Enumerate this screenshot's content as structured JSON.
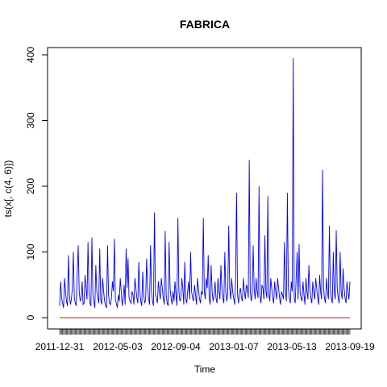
{
  "chart_data": {
    "type": "line",
    "title": "FABRICA",
    "xlabel": "Time",
    "ylabel": "ts(x[, c(4, 6)])",
    "ylim": [
      0,
      400
    ],
    "y_ticks": [
      0,
      100,
      200,
      300,
      400
    ],
    "x_tick_labels": [
      "2011-12-31",
      "2012-05-03",
      "2012-09-04",
      "2013-01-07",
      "2013-05-13",
      "2013-09-19"
    ],
    "x_tick_label_color": "#000000",
    "colors": {
      "series1": "#0000ff",
      "series2": "#ff0000",
      "frame": "#000000"
    },
    "series": [
      {
        "values": [
          18,
          55,
          30,
          22,
          15,
          60,
          40,
          25,
          18,
          95,
          35,
          20,
          28,
          45,
          100,
          30,
          22,
          18,
          70,
          110,
          40,
          25,
          30,
          55,
          20,
          22,
          65,
          45,
          28,
          115,
          40,
          22,
          18,
          122,
          35,
          25,
          15,
          80,
          40,
          30,
          22,
          105,
          28,
          20,
          60,
          40,
          25,
          18,
          15,
          110,
          35,
          22,
          20,
          30,
          55,
          40,
          120,
          28,
          22,
          15,
          35,
          25,
          60,
          40,
          18,
          30,
          50,
          20,
          105,
          45,
          90,
          30,
          25,
          22,
          40,
          35,
          20,
          60,
          45,
          30,
          22,
          85,
          40,
          25,
          18,
          70,
          35,
          22,
          28,
          90,
          45,
          30,
          20,
          110,
          40,
          25,
          18,
          160,
          35,
          30,
          22,
          55,
          40,
          28,
          60,
          45,
          30,
          20,
          132,
          35,
          22,
          18,
          115,
          45,
          30,
          20,
          40,
          25,
          55,
          35,
          18,
          152,
          40,
          25,
          30,
          60,
          45,
          20,
          85,
          30,
          22,
          40,
          55,
          28,
          100,
          40,
          30,
          25,
          50,
          35,
          20,
          60,
          45,
          30,
          22,
          40,
          35,
          152,
          40,
          28,
          60,
          45,
          95,
          30,
          20,
          80,
          40,
          25,
          35,
          55,
          30,
          22,
          60,
          40,
          28,
          80,
          45,
          30,
          22,
          100,
          40,
          25,
          35,
          140,
          45,
          28,
          60,
          40,
          30,
          20,
          55,
          190,
          35,
          22,
          40,
          45,
          30,
          25,
          60,
          40,
          28,
          50,
          45,
          30,
          240,
          40,
          25,
          35,
          110,
          45,
          28,
          60,
          40,
          30,
          200,
          35,
          22,
          50,
          45,
          28,
          125,
          40,
          30,
          185,
          35,
          25,
          60,
          45,
          30,
          22,
          55,
          40,
          28,
          60,
          45,
          30,
          20,
          40,
          35,
          28,
          115,
          40,
          25,
          190,
          45,
          30,
          22,
          55,
          40,
          395,
          30,
          22,
          60,
          100,
          28,
          112,
          40,
          30,
          25,
          55,
          35,
          20,
          60,
          40,
          28,
          80,
          45,
          30,
          22,
          55,
          40,
          28,
          60,
          45,
          30,
          20,
          65,
          40,
          28,
          225,
          45,
          30,
          22,
          60,
          40,
          28,
          140,
          45,
          30,
          22,
          100,
          40,
          28,
          133,
          45,
          30,
          22,
          100,
          40,
          28,
          75,
          45,
          30,
          22,
          55,
          40,
          28,
          55
        ]
      },
      {
        "values_constant": 0
      }
    ]
  }
}
